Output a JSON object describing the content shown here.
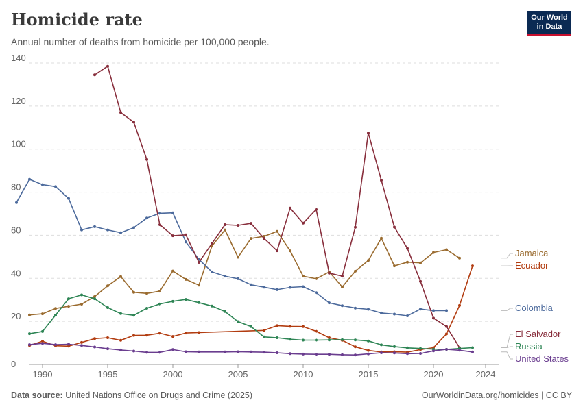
{
  "header": {
    "title": "Homicide rate",
    "subtitle": "Annual number of deaths from homicide per 100,000 people.",
    "logo_line1": "Our World",
    "logo_line2": "in Data"
  },
  "footer": {
    "source_label": "Data source:",
    "source_text": "United Nations Office on Drugs and Crime (2025)",
    "right_text": "OurWorldinData.org/homicides | CC BY"
  },
  "chart_data": {
    "type": "line",
    "xlabel": "",
    "ylabel": "",
    "xlim": [
      1989,
      2025
    ],
    "ylim": [
      0,
      140
    ],
    "xticks": [
      1990,
      1995,
      2000,
      2005,
      2010,
      2015,
      2020,
      2024
    ],
    "yticks": [
      0,
      20,
      40,
      60,
      80,
      100,
      120,
      140
    ],
    "grid": "horizontal-dashed",
    "legend": "right-labels",
    "series": [
      {
        "name": "Jamaica",
        "color": "#9a6b2f",
        "x": [
          1989,
          1990,
          1991,
          1992,
          1993,
          1994,
          1995,
          1996,
          1997,
          1998,
          1999,
          2000,
          2001,
          2002,
          2003,
          2004,
          2005,
          2006,
          2007,
          2008,
          2009,
          2010,
          2011,
          2012,
          2013,
          2014,
          2015,
          2016,
          2017,
          2018,
          2019,
          2020,
          2021,
          2022,
          2023
        ],
        "y": [
          23,
          23.5,
          26,
          27,
          28,
          31.5,
          36.5,
          40.8,
          33.5,
          33,
          34,
          43.4,
          39.5,
          36.8,
          55,
          62.5,
          49.8,
          58.5,
          59.5,
          61.8,
          52.8,
          41,
          39.8,
          43,
          36,
          43.3,
          48.3,
          58.6,
          45.8,
          47.5,
          47.2,
          52,
          53.3,
          49.4,
          null
        ]
      },
      {
        "name": "Ecuador",
        "color": "#b23c10",
        "x": [
          1989,
          1990,
          1991,
          1992,
          1993,
          1994,
          1995,
          1996,
          1997,
          1998,
          1999,
          2000,
          2001,
          2002,
          2007,
          2008,
          2009,
          2010,
          2011,
          2012,
          2013,
          2014,
          2015,
          2016,
          2017,
          2018,
          2019,
          2020,
          2021,
          2022,
          2023
        ],
        "y": [
          8.8,
          10.8,
          8.7,
          8.5,
          10.2,
          12,
          12.4,
          11.2,
          13.5,
          13.6,
          14.5,
          13,
          14.6,
          14.8,
          15.8,
          18,
          17.7,
          17.6,
          15.4,
          12.4,
          11.2,
          8.2,
          6.5,
          5.8,
          5.9,
          5.7,
          6.9,
          7.8,
          14.2,
          27.4,
          45.8
        ]
      },
      {
        "name": "Colombia",
        "color": "#4c6a9c",
        "x": [
          1988,
          1989,
          1990,
          1991,
          1992,
          1993,
          1994,
          1995,
          1996,
          1997,
          1998,
          1999,
          2000,
          2001,
          2002,
          2003,
          2004,
          2005,
          2006,
          2007,
          2008,
          2009,
          2010,
          2011,
          2012,
          2013,
          2014,
          2015,
          2016,
          2017,
          2018,
          2019,
          2020,
          2021,
          2022,
          2023
        ],
        "y": [
          75.2,
          86,
          83.5,
          82.6,
          77.1,
          62.5,
          64,
          62.5,
          61.2,
          63.5,
          68,
          70.2,
          70.4,
          56.9,
          48.8,
          43,
          41,
          39.8,
          37,
          35.9,
          34.7,
          35.8,
          36.1,
          33.3,
          28.6,
          27.3,
          26.2,
          25.6,
          23.9,
          23.4,
          22.6,
          25.7,
          25,
          25,
          null,
          null
        ]
      },
      {
        "name": "El Salvador",
        "color": "#882e3c",
        "x": [
          1994,
          1995,
          1996,
          1997,
          1998,
          1999,
          2000,
          2001,
          2002,
          2003,
          2004,
          2005,
          2006,
          2007,
          2008,
          2009,
          2010,
          2011,
          2012,
          2013,
          2014,
          2015,
          2016,
          2017,
          2018,
          2019,
          2020,
          2021,
          2022
        ],
        "y": [
          134.5,
          138.5,
          117,
          112.5,
          95.2,
          64.9,
          59.8,
          60.2,
          47.4,
          56.2,
          64.9,
          64.6,
          65.5,
          58.5,
          52.8,
          72.6,
          65.6,
          72,
          42.4,
          41,
          63.7,
          107.5,
          85.5,
          63.8,
          53.9,
          38.6,
          21.5,
          17.6,
          7.8
        ]
      },
      {
        "name": "Russia",
        "color": "#2e8555",
        "x": [
          1989,
          1990,
          1991,
          1992,
          1993,
          1994,
          1995,
          1996,
          1997,
          1998,
          1999,
          2000,
          2001,
          2002,
          2003,
          2004,
          2005,
          2006,
          2007,
          2008,
          2009,
          2010,
          2011,
          2012,
          2013,
          2014,
          2015,
          2016,
          2017,
          2018,
          2019,
          2020,
          2021,
          2022,
          2023
        ],
        "y": [
          14.3,
          15.3,
          22.9,
          30.5,
          32.3,
          30.5,
          26.4,
          23.6,
          22.8,
          26.1,
          28.1,
          29.3,
          30.2,
          28.7,
          27.1,
          24.6,
          19.9,
          17.6,
          12.8,
          12.4,
          11.7,
          11.3,
          11.3,
          11.4,
          11.5,
          11.4,
          10.9,
          9.1,
          8.3,
          7.7,
          7.4,
          7.1,
          7,
          7.4,
          7.8
        ]
      },
      {
        "name": "United States",
        "color": "#6a3d8f",
        "x": [
          1989,
          1990,
          1991,
          1992,
          1993,
          1994,
          1995,
          1996,
          1997,
          1998,
          1999,
          2000,
          2001,
          2002,
          2004,
          2005,
          2006,
          2007,
          2008,
          2009,
          2010,
          2011,
          2012,
          2013,
          2014,
          2015,
          2016,
          2017,
          2018,
          2019,
          2020,
          2021,
          2022,
          2023
        ],
        "y": [
          9.2,
          9.8,
          9.2,
          9.4,
          8.8,
          8.1,
          7.3,
          6.7,
          6.2,
          5.6,
          5.6,
          6.9,
          5.9,
          5.8,
          5.8,
          5.9,
          5.8,
          5.7,
          5.4,
          5.0,
          4.8,
          4.7,
          4.7,
          4.5,
          4.4,
          4.9,
          5.4,
          5.3,
          5.0,
          5.1,
          6.3,
          7.0,
          6.6,
          5.8
        ]
      }
    ]
  }
}
